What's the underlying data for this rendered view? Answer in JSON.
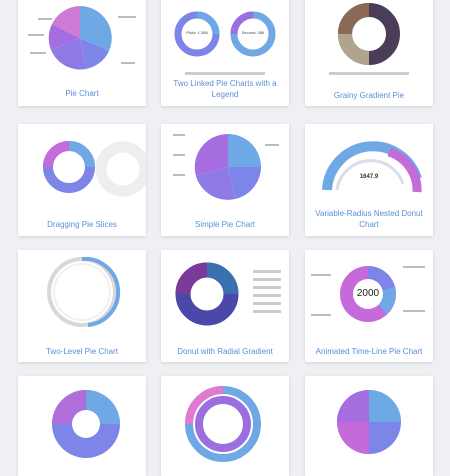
{
  "gallery": {
    "cards": [
      {
        "title": "Pie Chart"
      },
      {
        "title": "Two Linked Pie Charts with a Legend"
      },
      {
        "title": "Grainy Gradient Pie"
      },
      {
        "title": "Dragging Pie Slices"
      },
      {
        "title": "Simple Pie Chart"
      },
      {
        "title": "Variable-Radius Nested Donut Chart"
      },
      {
        "title": "Two-Level Pie Chart"
      },
      {
        "title": "Donut with Radial Gradient"
      },
      {
        "title": "Animated Time-Line Pie Chart"
      },
      {
        "title": ""
      },
      {
        "title": ""
      },
      {
        "title": ""
      }
    ]
  },
  "thumbnails": {
    "linked_pies": {
      "left_label": "Pluto: 1,388",
      "right_label": "Second: 389"
    },
    "nested_donut": {
      "value": "1647.9"
    },
    "timeline_pie": {
      "year": "2000"
    }
  },
  "colors": {
    "link": "#5b8fd9",
    "pie_palette": [
      "#6ea9e6",
      "#7d86e8",
      "#9b6fe0",
      "#c46ad9",
      "#e07ad0"
    ]
  }
}
